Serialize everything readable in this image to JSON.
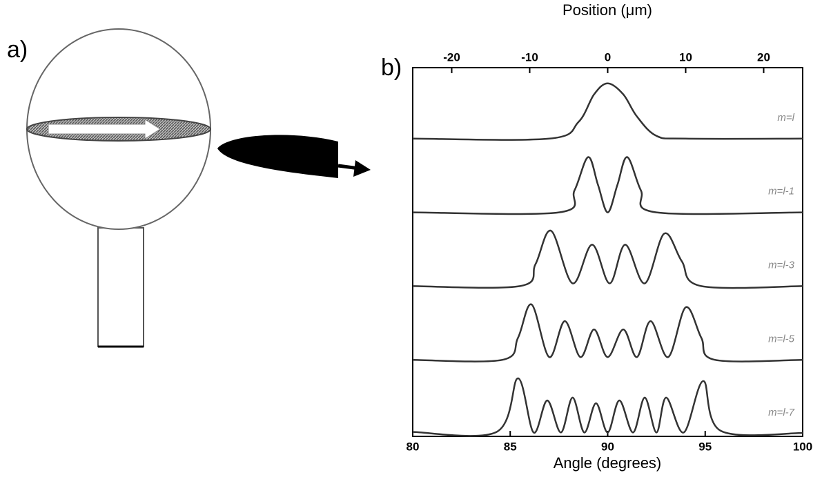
{
  "panel_a": {
    "label": "a)"
  },
  "chart_data": {
    "type": "line",
    "panel_label": "b)",
    "x_label": "Angle (degrees)",
    "x2_label": "Position (μm)",
    "xlim": [
      80,
      100
    ],
    "xticks": [
      80,
      85,
      90,
      95,
      100
    ],
    "x2lim": [
      -25,
      25
    ],
    "x2ticks": [
      -20,
      -10,
      0,
      10,
      20
    ],
    "series": [
      {
        "name": "m=l",
        "color": "#333333",
        "x": [
          80,
          87,
          88.5,
          89.3,
          90,
          90.8,
          91.5,
          92.5,
          94,
          100
        ],
        "values": [
          0,
          0,
          0.3,
          0.8,
          1,
          0.8,
          0.4,
          0.05,
          0,
          0
        ]
      },
      {
        "name": "m=l-1",
        "color": "#333333",
        "x": [
          80,
          87.5,
          88.3,
          89,
          89.5,
          90,
          90.5,
          91,
          91.7,
          92.5,
          100
        ],
        "values": [
          0,
          0,
          0.4,
          1,
          0.5,
          0,
          0.5,
          1,
          0.4,
          0,
          0
        ]
      },
      {
        "name": "m=l-3",
        "color": "#333333",
        "x": [
          80,
          85.5,
          86.3,
          87.1,
          88.2,
          89.2,
          90.1,
          90.9,
          91.9,
          92.9,
          93.8,
          94.8,
          100
        ],
        "values": [
          0,
          0,
          0.4,
          1,
          0.05,
          0.75,
          0.05,
          0.75,
          0.05,
          0.95,
          0.45,
          0,
          0
        ]
      },
      {
        "name": "m=l-5",
        "color": "#333333",
        "x": [
          80,
          84.6,
          85.4,
          86.1,
          87.0,
          87.8,
          88.6,
          89.3,
          90.0,
          90.8,
          91.5,
          92.2,
          93.1,
          94.0,
          94.8,
          95.5,
          100
        ],
        "values": [
          0,
          0,
          0.4,
          1,
          0.05,
          0.7,
          0.05,
          0.55,
          0.05,
          0.55,
          0.05,
          0.7,
          0.05,
          0.95,
          0.4,
          0,
          0
        ]
      },
      {
        "name": "m=l-7",
        "color": "#333333",
        "x": [
          80,
          84.3,
          85.4,
          86.2,
          86.9,
          87.6,
          88.2,
          88.8,
          89.4,
          90.0,
          90.6,
          91.3,
          91.9,
          92.5,
          93.0,
          93.9,
          94.9,
          95.8,
          100
        ],
        "values": [
          0.03,
          0.03,
          1,
          0.02,
          0.6,
          0.02,
          0.65,
          0.02,
          0.55,
          0.02,
          0.6,
          0.02,
          0.65,
          0.02,
          0.65,
          0.02,
          0.95,
          0.05,
          0.01
        ]
      }
    ]
  }
}
